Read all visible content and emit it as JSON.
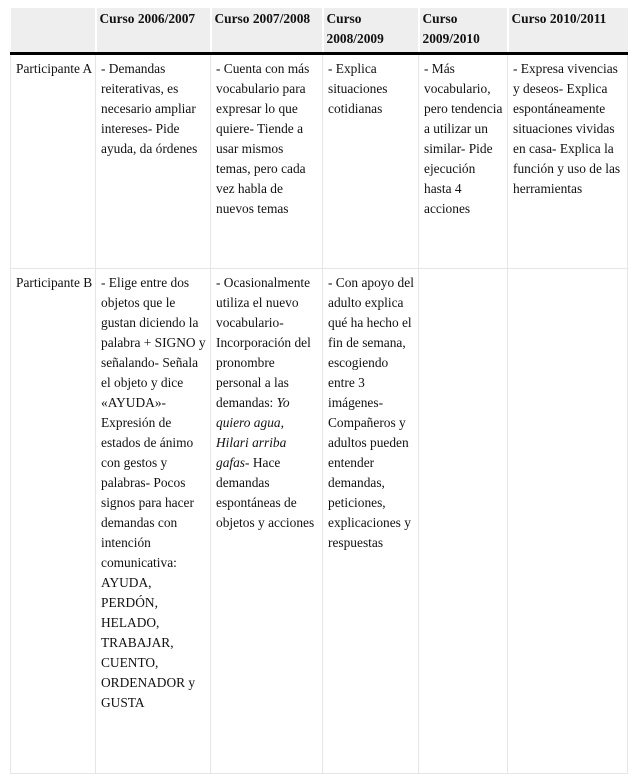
{
  "table": {
    "headers": [
      "",
      "Curso 2006/2007",
      "Curso 2007/2008",
      "Curso 2008/2009",
      "Curso 2009/2010",
      "Curso 2010/2011"
    ],
    "rows": [
      {
        "label": "Participante A",
        "cells": [
          [
            {
              "text": "- Demandas reiterativas, es necesario ampliar intereses- Pide ayuda, da órdenes"
            }
          ],
          [
            {
              "text": "- Cuenta con más vocabulario para expresar lo que quiere- Tiende a usar mismos temas, pero cada vez habla de nuevos temas"
            }
          ],
          [
            {
              "text": "- Explica situaciones cotidianas"
            }
          ],
          [
            {
              "text": "- Más vocabulario, pero tendencia a utilizar un similar- Pide ejecución hasta 4 acciones"
            }
          ],
          [
            {
              "text": "- Expresa vivencias y deseos- Explica espontáneamente situaciones vividas en casa- Explica la función y uso de las herramientas"
            }
          ]
        ]
      },
      {
        "label": "Participante B",
        "cells": [
          [
            {
              "text": "- Elige entre dos objetos que le gustan diciendo la palabra + SIGNO y señalando- Señala el objeto y dice «AYUDA»- Expresión de estados de ánimo con gestos y palabras- Pocos signos para hacer demandas con intención comunicativa: AYUDA, PERDÓN, HELADO, TRABAJAR, CUENTO, ORDENADOR y GUSTA"
            }
          ],
          [
            {
              "text": "- Ocasionalmente utiliza el nuevo vocabulario- Incorporación del pronombre personal a las demandas: "
            },
            {
              "text": "Yo quiero agua, Hilari arriba gafas",
              "italic": true
            },
            {
              "text": "- Hace demandas espontáneas de objetos y acciones"
            }
          ],
          [
            {
              "text": "- Con apoyo del adulto explica qué ha hecho el fin de semana, escogiendo entre 3 imágenes- Compañeros y adultos pueden entender demandas, peticiones, explicaciones y respuestas"
            }
          ],
          [],
          []
        ]
      }
    ]
  }
}
